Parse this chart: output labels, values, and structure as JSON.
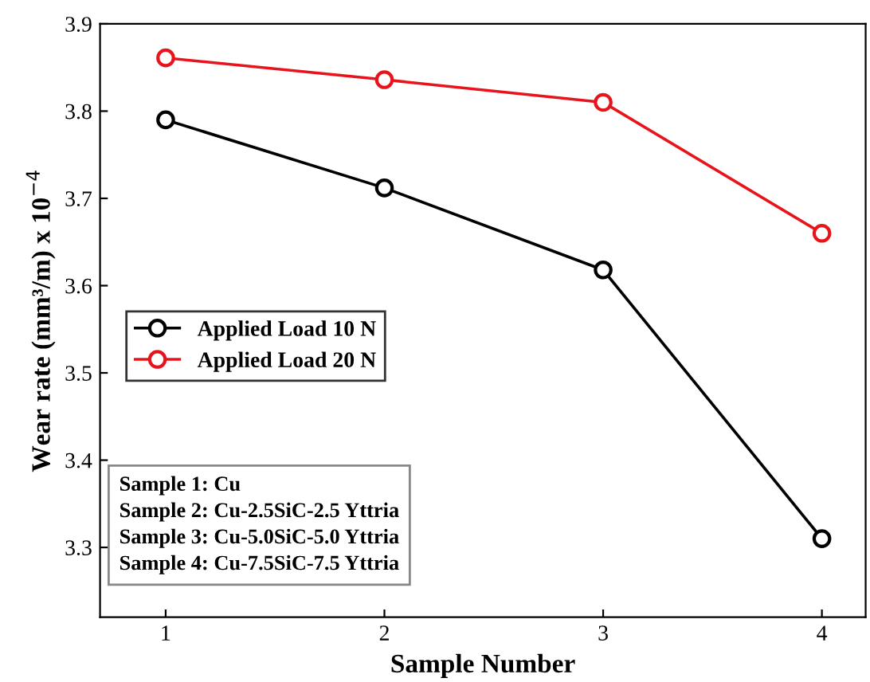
{
  "chart_data": {
    "type": "line",
    "xlabel": "Sample Number",
    "ylabel": "Wear rate (mm³/m) x 10$^{−4}$",
    "x": [
      1,
      2,
      3,
      4
    ],
    "series": [
      {
        "name": "Applied Load 10 N",
        "color": "#000000",
        "values": [
          3.79,
          3.712,
          3.618,
          3.31
        ]
      },
      {
        "name": "Applied Load 20 N",
        "color": "#e8141c",
        "values": [
          3.861,
          3.836,
          3.81,
          3.66
        ]
      }
    ],
    "xlim": [
      0.7,
      4.2
    ],
    "ylim": [
      3.22,
      3.9
    ],
    "xticks": [
      1,
      2,
      3,
      4
    ],
    "yticks": [
      3.3,
      3.4,
      3.5,
      3.6,
      3.7,
      3.8,
      3.9
    ],
    "marker": "circle",
    "line_style": "solid",
    "grid": false,
    "legend": "left",
    "annotations": [
      "Sample 1: Cu",
      "Sample 2: Cu-2.5SiC-2.5 Yttria",
      "Sample 3: Cu-5.0SiC-5.0 Yttria",
      "Sample 4: Cu-7.5SiC-7.5 Yttria"
    ]
  }
}
